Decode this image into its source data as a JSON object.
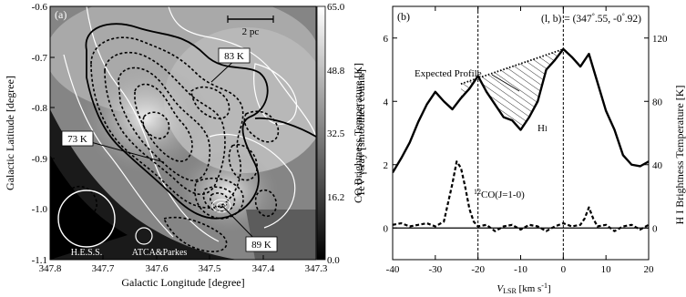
{
  "chart_data": [
    {
      "type": "heatmap",
      "panel_label": "(a)",
      "xlabel": "Galactic Longitude [degree]",
      "ylabel": "Galactic Latitude [degree]",
      "colorbar_label": "TeV γ-ray [smoothed counts]",
      "xlim": [
        347.8,
        347.3
      ],
      "ylim": [
        -1.1,
        -0.6
      ],
      "x_ticks": [
        "347.8",
        "347.7",
        "347.6",
        "347.5",
        "347.4",
        "347.3"
      ],
      "y_ticks": [
        "-0.6",
        "-0.7",
        "-0.8",
        "-0.9",
        "-1.0",
        "-1.1"
      ],
      "colorbar_ticks": [
        "65.0",
        "48.8",
        "32.5",
        "16.2",
        "0.0"
      ],
      "colorbar_range": [
        0.0,
        65.0
      ],
      "annotations": [
        "83 K",
        "73 K",
        "89 K",
        "H.E.S.S.",
        "ATCA&Parkes"
      ],
      "scale_bar": "2 pc"
    },
    {
      "type": "line",
      "panel_label": "(b)",
      "title_prefix": "(l, b) = (347",
      "title_l_rest": ".55, -0",
      "title_b_rest": ".92)",
      "xlabel_main": "V",
      "xlabel_sub": "LSR",
      "xlabel_unit": " [km s",
      "xlabel_sup": "-1",
      "xlabel_close": "]",
      "ylabel_left": "CO Brightness Temperature [K]",
      "ylabel_right": "H I Brightness Temperature [K]",
      "xlim": [
        -40,
        20
      ],
      "ylim_left": [
        -1,
        7
      ],
      "ylim_right": [
        -20,
        140
      ],
      "x_ticks": [
        -40,
        -30,
        -20,
        -10,
        0,
        10,
        20
      ],
      "y_ticks_left": [
        0,
        2,
        4,
        6
      ],
      "y_ticks_right": [
        0,
        40,
        80,
        120
      ],
      "vlines": [
        -20,
        0
      ],
      "series": [
        {
          "name": "H I",
          "axis": "right",
          "x": [
            -40,
            -38,
            -36,
            -34,
            -32,
            -30,
            -28,
            -26,
            -24,
            -22,
            -20,
            -18,
            -16,
            -14,
            -12,
            -10,
            -8,
            -6,
            -4,
            -2,
            0,
            2,
            4,
            6,
            8,
            10,
            12,
            14,
            16,
            18,
            20
          ],
          "y": [
            35,
            44,
            54,
            67,
            78,
            86,
            80,
            75,
            82,
            88,
            96,
            86,
            78,
            70,
            68,
            62,
            70,
            80,
            100,
            106,
            113,
            108,
            102,
            110,
            92,
            74,
            62,
            46,
            40,
            39,
            42
          ]
        },
        {
          "name": "12CO(J=1-0)",
          "axis": "left",
          "x": [
            -40,
            -38,
            -36,
            -34,
            -32,
            -30,
            -28,
            -26,
            -25,
            -24,
            -23,
            -22,
            -21,
            -20,
            -18,
            -16,
            -14,
            -12,
            -10,
            -8,
            -6,
            -4,
            -2,
            0,
            2,
            4,
            5,
            6,
            7,
            8,
            10,
            12,
            14,
            16,
            18,
            20
          ],
          "y": [
            0.1,
            0.15,
            0.05,
            0.1,
            0.15,
            0.05,
            0.2,
            1.4,
            2.1,
            1.9,
            1.3,
            0.6,
            0.2,
            0.05,
            0.1,
            -0.1,
            0.05,
            0.1,
            -0.05,
            0.1,
            0.05,
            -0.1,
            0.05,
            0.15,
            0.05,
            0.1,
            0.3,
            0.65,
            0.3,
            0.05,
            0.1,
            -0.1,
            0.05,
            0.1,
            -0.05,
            0.1
          ]
        }
      ],
      "expected_profile": {
        "x": [
          -24,
          0
        ],
        "y": [
          91,
          113
        ]
      },
      "annotations": {
        "expected": "Expected Profile",
        "hi": "H",
        "hi_tail": "I",
        "co_sup": "12",
        "co_rest": "CO(J=1-0)"
      }
    }
  ],
  "colors": {
    "hi_line": "#000000",
    "co_line": "#000000",
    "gray_bg": "#8a8a8a",
    "contour_white": "#ffffff"
  }
}
